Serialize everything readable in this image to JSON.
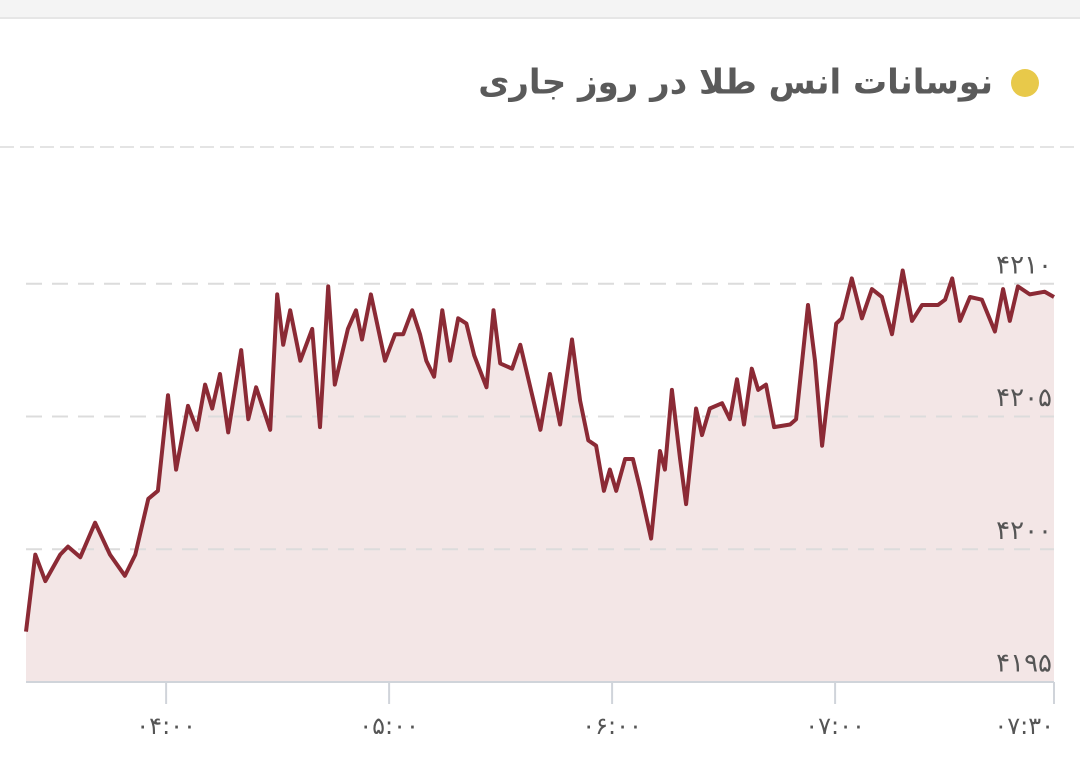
{
  "chart_data": {
    "type": "line",
    "title": "نوسانات انس طلا در روز جاری",
    "x": [
      202.3,
      204.8,
      207.5,
      211.5,
      213.6,
      216.9,
      220.9,
      224.9,
      228.9,
      231.7,
      235.2,
      237.8,
      240.5,
      242.7,
      245.9,
      248.3,
      250.5,
      252.4,
      254.5,
      256.7,
      260.2,
      262.1,
      264.2,
      268.0,
      269.9,
      271.5,
      273.4,
      276.1,
      279.3,
      281.4,
      283.6,
      285.4,
      288.9,
      291.1,
      292.7,
      295.1,
      298.9,
      301.6,
      303.8,
      306.2,
      308.3,
      310.0,
      312.1,
      314.3,
      316.4,
      318.6,
      320.8,
      322.9,
      326.2,
      328.1,
      329.9,
      333.1,
      335.3,
      338.0,
      340.7,
      343.3,
      346.0,
      349.2,
      351.4,
      353.6,
      355.7,
      357.8,
      359.4,
      361.1,
      363.5,
      365.6,
      367.5,
      370.5,
      372.9,
      374.2,
      376.1,
      378.3,
      379.9,
      382.6,
      384.2,
      386.3,
      389.6,
      391.7,
      393.6,
      395.5,
      397.6,
      399.3,
      401.4,
      403.6,
      407.9,
      409.5,
      412.7,
      414.6,
      416.5,
      420.3,
      421.8,
      424.5,
      427.2,
      429.9,
      432.6,
      435.3,
      438.2,
      440.7,
      443.4,
      447.7,
      449.6,
      451.5,
      453.6,
      456.3,
      459.5,
      463.0,
      465.2,
      467.0,
      469.2,
      472.4,
      476.4,
      478.9
    ],
    "series": [
      {
        "name": "انس طلا",
        "color": "#8b2a35",
        "fill": "#f3e6e6",
        "values": [
          4196.9,
          4199.8,
          4198.8,
          4199.8,
          4200.1,
          4199.7,
          4201.0,
          4199.8,
          4199.0,
          4199.8,
          4201.9,
          4202.2,
          4205.8,
          4203.0,
          4205.4,
          4204.5,
          4206.2,
          4205.3,
          4206.6,
          4204.4,
          4207.5,
          4204.9,
          4206.1,
          4204.5,
          4209.6,
          4207.7,
          4209.0,
          4207.1,
          4208.3,
          4204.6,
          4209.9,
          4206.2,
          4208.3,
          4209.0,
          4207.9,
          4209.6,
          4207.1,
          4208.1,
          4208.1,
          4209.0,
          4208.1,
          4207.1,
          4206.5,
          4209.0,
          4207.1,
          4208.7,
          4208.5,
          4207.3,
          4206.1,
          4209.0,
          4207.0,
          4206.8,
          4207.7,
          4206.1,
          4204.5,
          4206.6,
          4204.7,
          4207.9,
          4205.6,
          4204.1,
          4203.9,
          4202.2,
          4203.0,
          4202.2,
          4203.4,
          4203.4,
          4202.3,
          4200.4,
          4203.7,
          4203.0,
          4206.0,
          4203.4,
          4201.7,
          4205.3,
          4204.3,
          4205.3,
          4205.5,
          4204.9,
          4206.4,
          4204.7,
          4206.8,
          4206.0,
          4206.2,
          4204.6,
          4204.7,
          4204.9,
          4209.2,
          4207.1,
          4203.9,
          4208.5,
          4208.7,
          4210.2,
          4208.7,
          4209.8,
          4209.5,
          4208.1,
          4210.5,
          4208.6,
          4209.2,
          4209.2,
          4209.4,
          4210.2,
          4208.6,
          4209.5,
          4209.4,
          4208.2,
          4209.8,
          4208.6,
          4209.9,
          4209.6,
          4209.7,
          4209.5
        ]
      }
    ],
    "xlim": [
      202.3,
      478.9
    ],
    "xticks": [
      {
        "value": 240,
        "label": "۰۴:۰۰"
      },
      {
        "value": 300,
        "label": "۰۵:۰۰"
      },
      {
        "value": 360,
        "label": "۰۶:۰۰"
      },
      {
        "value": 420,
        "label": "۰۷:۰۰"
      }
    ],
    "x_end_label": "۰۷:۳۰",
    "ylim": [
      4195,
      4215
    ],
    "yticks": [
      {
        "value": 4195,
        "label": "۴۱۹۵"
      },
      {
        "value": 4200,
        "label": "۴۲۰۰"
      },
      {
        "value": 4205,
        "label": "۴۲۰۵"
      },
      {
        "value": 4210,
        "label": "۴۲۱۰"
      }
    ],
    "grid": true,
    "title_dot_color": "#e8c94a"
  }
}
